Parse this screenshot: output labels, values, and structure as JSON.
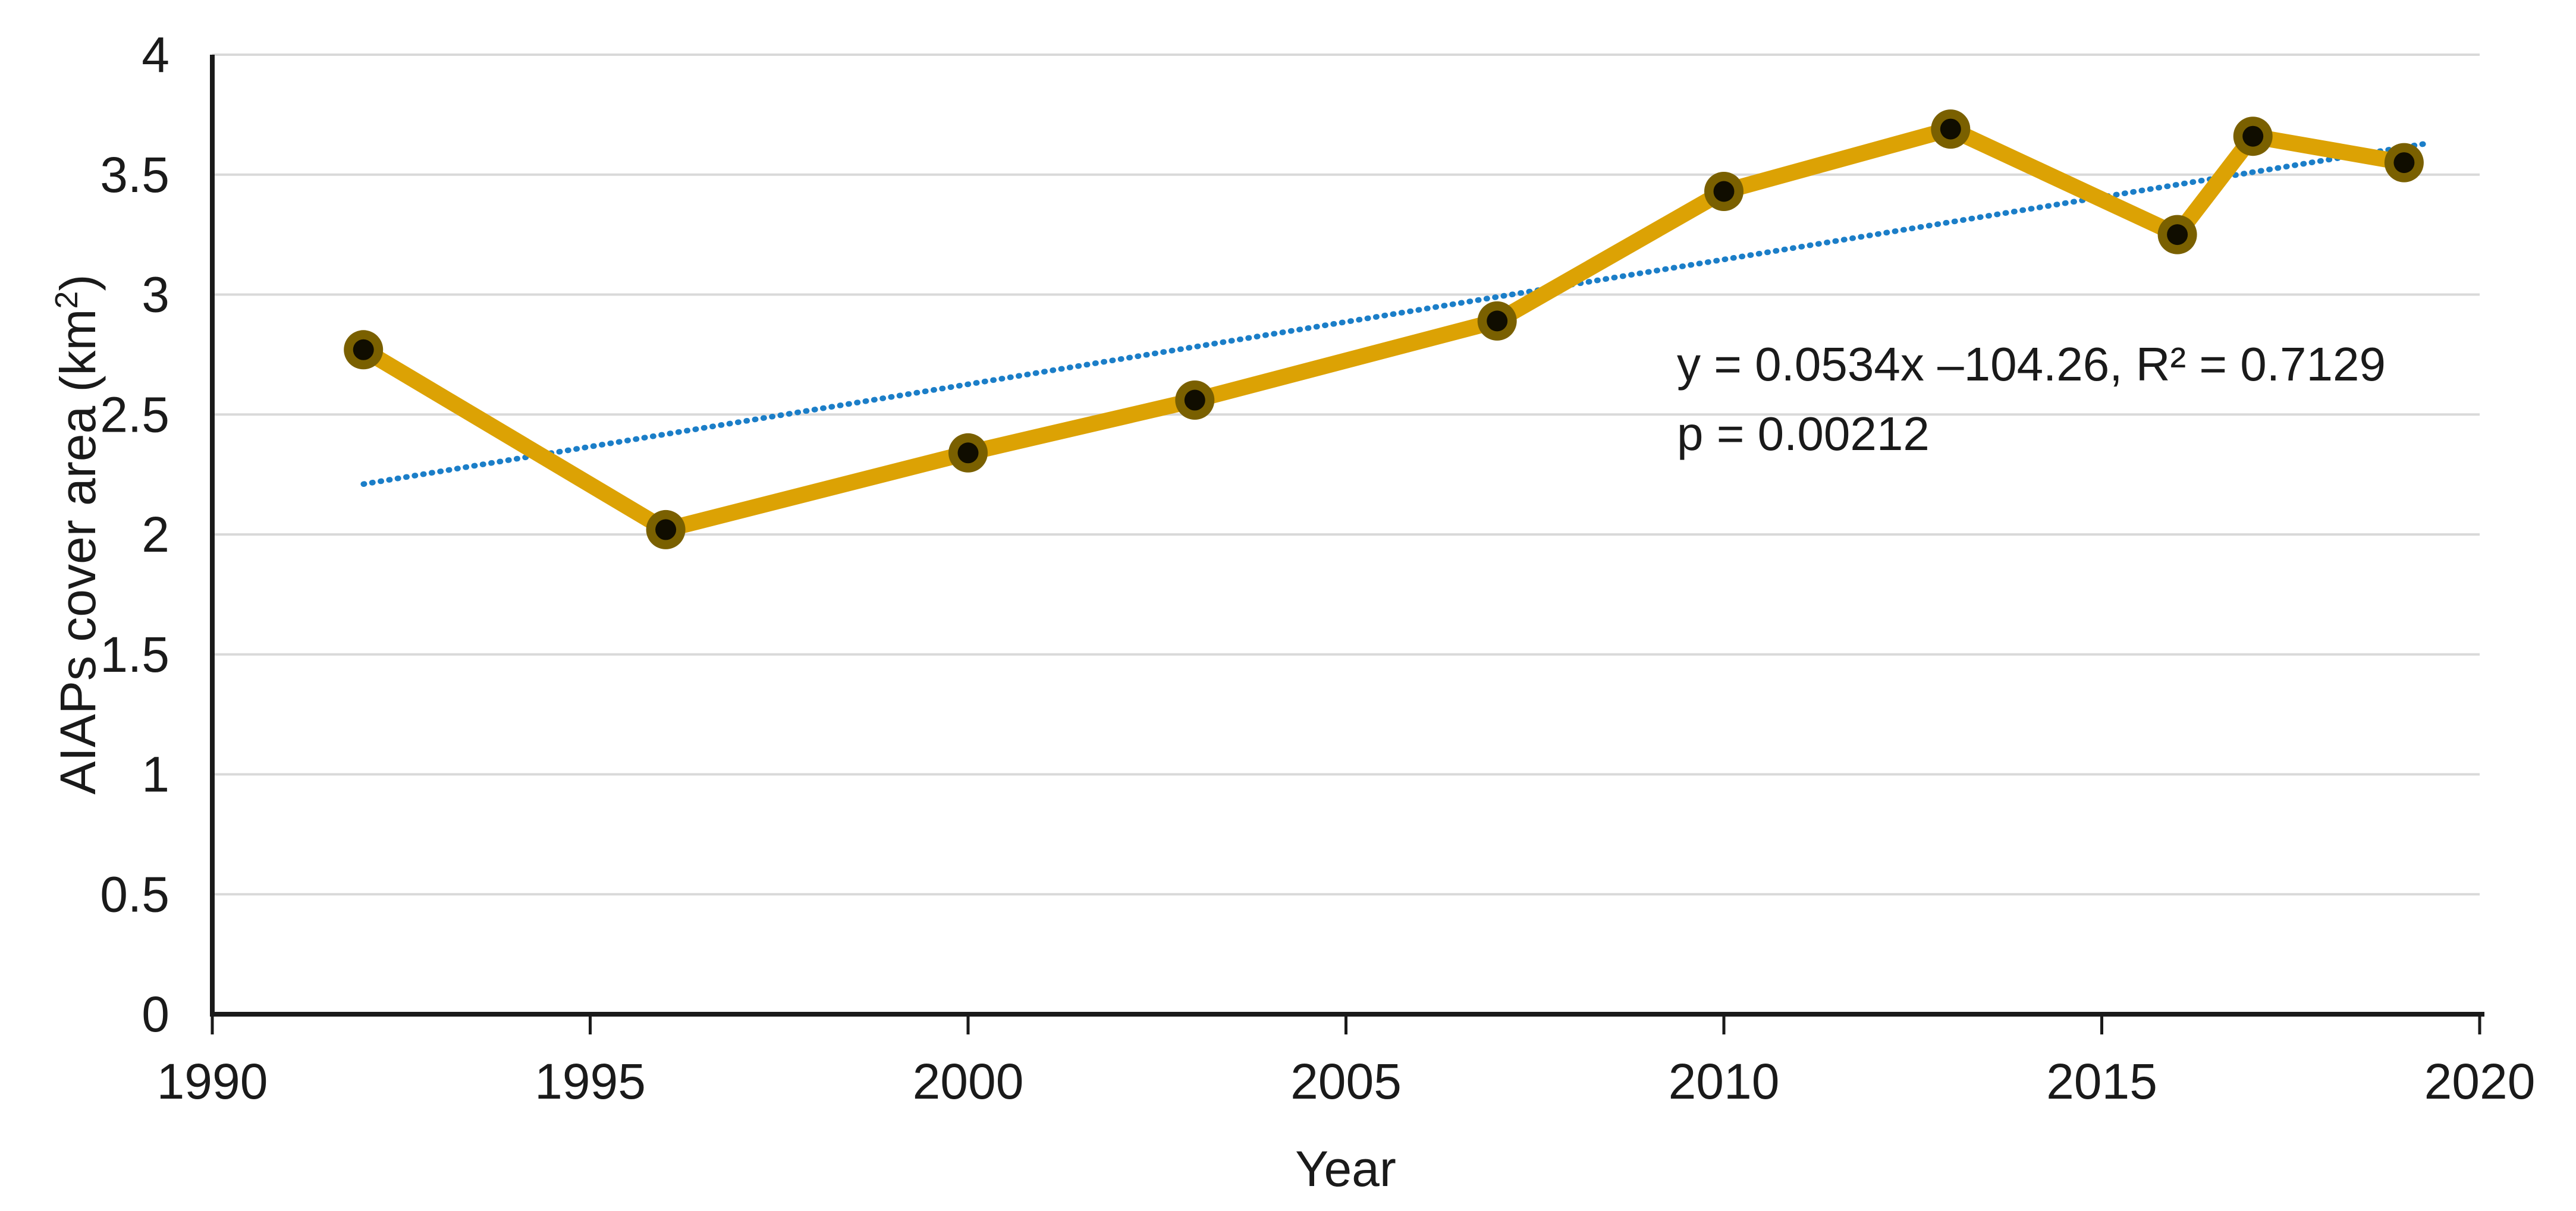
{
  "chart_data": {
    "type": "line",
    "title": "",
    "xlabel": "Year",
    "ylabel": "AIAPs cover area (km²)",
    "ylabel_parts": {
      "base": "AIAPs cover area (km",
      "superscript": "2",
      "suffix": ")"
    },
    "x_ticks": [
      "1990",
      "1995",
      "2000",
      "2005",
      "2010",
      "2015",
      "2020"
    ],
    "y_ticks": [
      "0",
      "0.5",
      "1",
      "1.5",
      "2",
      "2.5",
      "3",
      "3.5",
      "4"
    ],
    "xlim": [
      1990,
      2020
    ],
    "ylim": [
      0,
      4
    ],
    "grid": "horizontal",
    "legend": "none",
    "series": [
      {
        "name": "AIAPs cover area",
        "style": "solid-line-with-round-markers",
        "x": [
          1992,
          1996,
          2000,
          2003,
          2007,
          2010,
          2013,
          2016,
          2017,
          2019
        ],
        "y": [
          2.77,
          2.02,
          2.34,
          2.56,
          2.89,
          3.43,
          3.69,
          3.25,
          3.66,
          3.55
        ]
      }
    ],
    "trendline": {
      "style": "dotted",
      "x_start": 1992.0,
      "y_start": 2.21,
      "x_end": 2019.3,
      "y_end": 3.63
    },
    "annotation": {
      "line1": "y = 0.0534x –104.26, R² = 0.7129",
      "line2": "p = 0.00212"
    },
    "colors": {
      "series_line": "#DCA204",
      "marker_ring": "#7A6000",
      "marker_core": "#100D00",
      "trendline": "#1B7EC8",
      "gridline": "#D9D9D9",
      "axis": "#1A1A1A",
      "text": "#1A1A1A"
    }
  }
}
